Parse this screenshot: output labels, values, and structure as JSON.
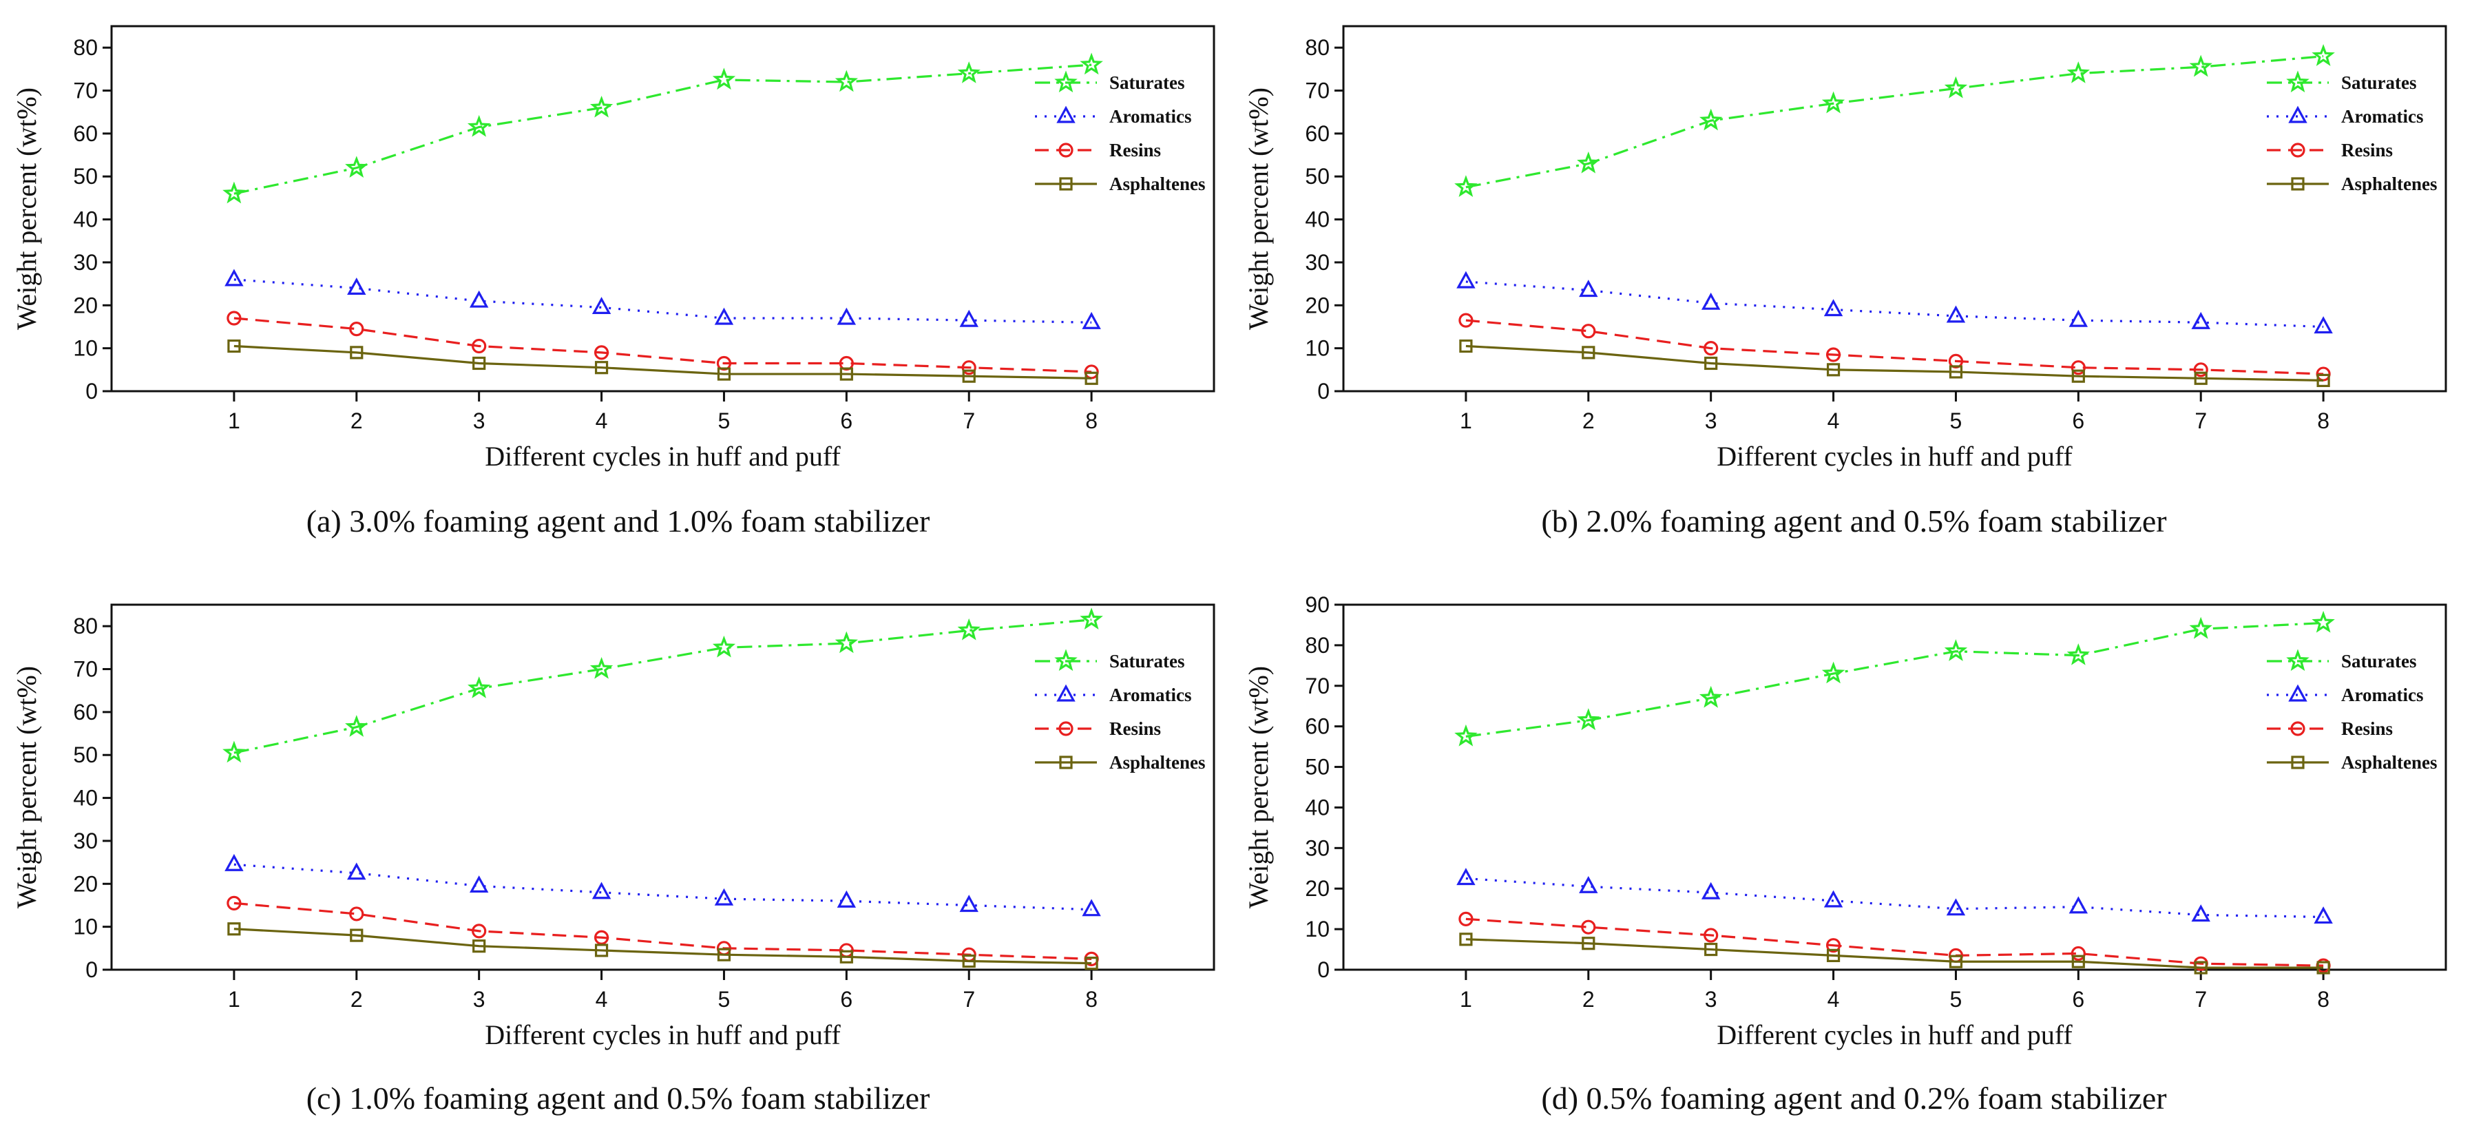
{
  "chart_data": [
    {
      "type": "line",
      "caption": "(a) 3.0% foaming agent and 1.0% foam stabilizer",
      "xlabel": "Different cycles in huff and puff",
      "ylabel": "Weight percent (wt%)",
      "x": [
        1,
        2,
        3,
        4,
        5,
        6,
        7,
        8
      ],
      "xlim": [
        0,
        9
      ],
      "ylim": [
        0,
        85
      ],
      "yticks": [
        0,
        10,
        20,
        30,
        40,
        50,
        60,
        70,
        80
      ],
      "legend_position": "top-right",
      "series": [
        {
          "name": "Saturates",
          "values": [
            46,
            52,
            61.5,
            66,
            72.5,
            72,
            74,
            76
          ]
        },
        {
          "name": "Aromatics",
          "values": [
            26,
            24,
            21,
            19.5,
            17,
            17,
            16.5,
            16
          ]
        },
        {
          "name": "Resins",
          "values": [
            17,
            14.5,
            10.5,
            9,
            6.5,
            6.5,
            5.5,
            4.5
          ]
        },
        {
          "name": "Asphaltenes",
          "values": [
            10.5,
            9,
            6.5,
            5.5,
            4,
            4,
            3.5,
            3
          ]
        }
      ]
    },
    {
      "type": "line",
      "caption": "(b) 2.0% foaming agent and 0.5% foam stabilizer",
      "xlabel": "Different cycles in huff and puff",
      "ylabel": "Weight percent (wt%)",
      "x": [
        1,
        2,
        3,
        4,
        5,
        6,
        7,
        8
      ],
      "xlim": [
        0,
        9
      ],
      "ylim": [
        0,
        85
      ],
      "yticks": [
        0,
        10,
        20,
        30,
        40,
        50,
        60,
        70,
        80
      ],
      "legend_position": "top-right",
      "series": [
        {
          "name": "Saturates",
          "values": [
            47.5,
            53,
            63,
            67,
            70.5,
            74,
            75.5,
            78
          ]
        },
        {
          "name": "Aromatics",
          "values": [
            25.5,
            23.5,
            20.5,
            19,
            17.5,
            16.5,
            16,
            15
          ]
        },
        {
          "name": "Resins",
          "values": [
            16.5,
            14,
            10,
            8.5,
            7,
            5.5,
            5,
            4
          ]
        },
        {
          "name": "Asphaltenes",
          "values": [
            10.5,
            9,
            6.5,
            5,
            4.5,
            3.5,
            3,
            2.5
          ]
        }
      ]
    },
    {
      "type": "line",
      "caption": "(c) 1.0% foaming agent and 0.5% foam stabilizer",
      "xlabel": "Different cycles in huff and puff",
      "ylabel": "Weight percent (wt%)",
      "x": [
        1,
        2,
        3,
        4,
        5,
        6,
        7,
        8
      ],
      "xlim": [
        0,
        9
      ],
      "ylim": [
        0,
        85
      ],
      "yticks": [
        0,
        10,
        20,
        30,
        40,
        50,
        60,
        70,
        80
      ],
      "legend_position": "top-right",
      "series": [
        {
          "name": "Saturates",
          "values": [
            50.5,
            56.5,
            65.5,
            70,
            75,
            76,
            79,
            81.5
          ]
        },
        {
          "name": "Aromatics",
          "values": [
            24.5,
            22.5,
            19.5,
            18,
            16.5,
            16,
            15,
            14
          ]
        },
        {
          "name": "Resins",
          "values": [
            15.5,
            13,
            9,
            7.5,
            5,
            4.5,
            3.5,
            2.5
          ]
        },
        {
          "name": "Asphaltenes",
          "values": [
            9.5,
            8,
            5.5,
            4.5,
            3.5,
            3,
            2,
            1.5
          ]
        }
      ]
    },
    {
      "type": "line",
      "caption": "(d) 0.5% foaming agent and 0.2% foam stabilizer",
      "xlabel": "Different cycles in huff and puff",
      "ylabel": "Weight percent (wt%)",
      "x": [
        1,
        2,
        3,
        4,
        5,
        6,
        7,
        8
      ],
      "xlim": [
        0,
        9
      ],
      "ylim": [
        0,
        90
      ],
      "yticks": [
        0,
        10,
        20,
        30,
        40,
        50,
        60,
        70,
        80,
        90
      ],
      "legend_position": "top-right",
      "series": [
        {
          "name": "Saturates",
          "values": [
            57.5,
            61.5,
            67,
            73,
            78.5,
            77.5,
            84,
            85.5
          ]
        },
        {
          "name": "Aromatics",
          "values": [
            22.5,
            20.5,
            19,
            17,
            15,
            15.5,
            13.5,
            13
          ]
        },
        {
          "name": "Resins",
          "values": [
            12.5,
            10.5,
            8.5,
            6,
            3.5,
            4,
            1.5,
            1
          ]
        },
        {
          "name": "Asphaltenes",
          "values": [
            7.5,
            6.5,
            5,
            3.5,
            2,
            2,
            0.5,
            0.5
          ]
        }
      ]
    }
  ],
  "colors": {
    "Saturates": "#2ee82e",
    "Aromatics": "#1f1ff0",
    "Resins": "#e81f1f",
    "Asphaltenes": "#6b6410",
    "axis": "#111111"
  },
  "markers": {
    "Saturates": "star",
    "Aromatics": "triangle",
    "Resins": "circle",
    "Asphaltenes": "square"
  },
  "dash_styles": {
    "Saturates": "dash-dot",
    "Aromatics": "dotted",
    "Resins": "dashed",
    "Asphaltenes": "solid"
  }
}
